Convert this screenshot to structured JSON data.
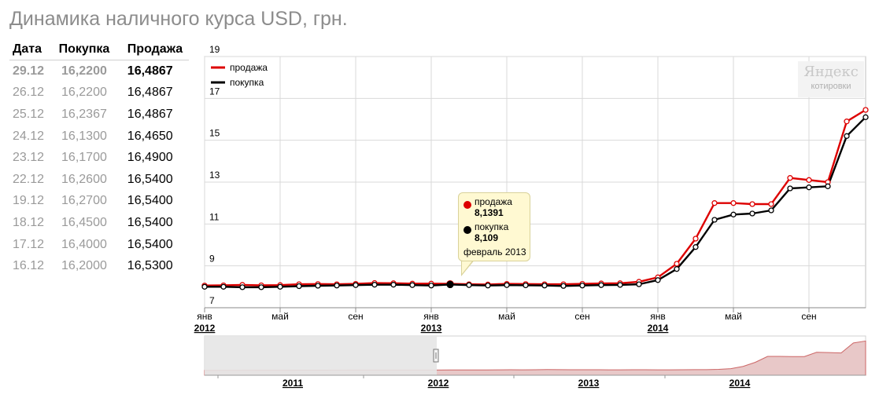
{
  "title": "Динамика наличного курса USD, грн.",
  "table": {
    "headers": [
      "Дата",
      "Покупка",
      "Продажа"
    ],
    "rows": [
      [
        "29.12",
        "16,2200",
        "16,4867"
      ],
      [
        "26.12",
        "16,2200",
        "16,4867"
      ],
      [
        "25.12",
        "16,2367",
        "16,4867"
      ],
      [
        "24.12",
        "16,1300",
        "16,4650"
      ],
      [
        "23.12",
        "16,1700",
        "16,4900"
      ],
      [
        "22.12",
        "16,2600",
        "16,5400"
      ],
      [
        "19.12",
        "16,2700",
        "16,5400"
      ],
      [
        "18.12",
        "16,4500",
        "16,5400"
      ],
      [
        "17.12",
        "16,4000",
        "16,5400"
      ],
      [
        "16.12",
        "16,2000",
        "16,5300"
      ]
    ]
  },
  "logo": {
    "brand": "Яндекс",
    "subtitle": "котировки"
  },
  "tooltip": {
    "sell_label": "продажа",
    "sell_value": "8,1391",
    "buy_label": "покупка",
    "buy_value": "8,109",
    "date": "февраль 2013"
  },
  "colors": {
    "sell": "#dd0000",
    "buy": "#000000",
    "grid": "#d9d9d9",
    "nav_fill": "#e8c8c8"
  },
  "chart_data": {
    "type": "line",
    "ylim": [
      7,
      19
    ],
    "yticks": [
      7,
      9,
      11,
      13,
      15,
      17,
      19
    ],
    "xlim": [
      0,
      35
    ],
    "xticks": [
      {
        "x": 0,
        "label": "янв",
        "sub": "2012"
      },
      {
        "x": 4,
        "label": "май",
        "sub": ""
      },
      {
        "x": 8,
        "label": "сен",
        "sub": ""
      },
      {
        "x": 12,
        "label": "янв",
        "sub": "2013"
      },
      {
        "x": 16,
        "label": "май",
        "sub": ""
      },
      {
        "x": 20,
        "label": "сен",
        "sub": ""
      },
      {
        "x": 24,
        "label": "янв",
        "sub": "2014"
      },
      {
        "x": 28,
        "label": "май",
        "sub": ""
      },
      {
        "x": 32,
        "label": "сен",
        "sub": ""
      }
    ],
    "legend": [
      "продажа",
      "покупка"
    ],
    "legend_position": "top-left",
    "grid": true,
    "highlight_index": 13,
    "series": [
      {
        "name": "продажа",
        "x": [
          0,
          1,
          2,
          3,
          4,
          5,
          6,
          7,
          8,
          9,
          10,
          11,
          12,
          13,
          14,
          15,
          16,
          17,
          18,
          19,
          20,
          21,
          22,
          23,
          24,
          25,
          26,
          27,
          28,
          29,
          30,
          31,
          32,
          33,
          34,
          35
        ],
        "values": [
          8.06,
          8.07,
          8.09,
          8.07,
          8.08,
          8.12,
          8.13,
          8.12,
          8.14,
          8.18,
          8.17,
          8.15,
          8.15,
          8.14,
          8.12,
          8.11,
          8.14,
          8.13,
          8.12,
          8.12,
          8.14,
          8.16,
          8.17,
          8.24,
          8.45,
          9.1,
          10.3,
          12.0,
          12.0,
          11.95,
          11.95,
          13.2,
          13.1,
          13.0,
          15.9,
          16.45
        ]
      },
      {
        "name": "покупка",
        "x": [
          0,
          1,
          2,
          3,
          4,
          5,
          6,
          7,
          8,
          9,
          10,
          11,
          12,
          13,
          14,
          15,
          16,
          17,
          18,
          19,
          20,
          21,
          22,
          23,
          24,
          25,
          26,
          27,
          28,
          29,
          30,
          31,
          32,
          33,
          34,
          35
        ],
        "values": [
          8.0,
          8.0,
          7.98,
          7.98,
          8.0,
          8.03,
          8.05,
          8.06,
          8.08,
          8.1,
          8.1,
          8.08,
          8.06,
          8.11,
          8.08,
          8.06,
          8.08,
          8.07,
          8.06,
          8.04,
          8.06,
          8.08,
          8.09,
          8.12,
          8.32,
          8.85,
          9.9,
          11.2,
          11.45,
          11.5,
          11.65,
          12.7,
          12.75,
          12.8,
          15.2,
          16.1
        ]
      }
    ],
    "navigator": {
      "labels": [
        "2011",
        "2012",
        "2013",
        "2014"
      ]
    }
  }
}
